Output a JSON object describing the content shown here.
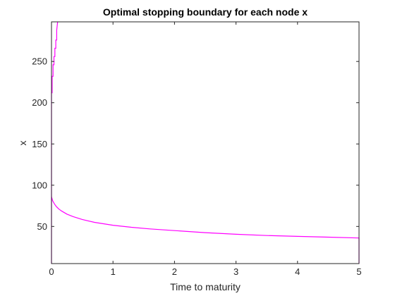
{
  "chart_data": {
    "type": "line",
    "title": "Optimal stopping boundary for each node x",
    "xlabel": "Time to maturity",
    "ylabel": "x",
    "xlim": [
      0,
      5
    ],
    "ylim": [
      5,
      298
    ],
    "xticks": [
      0,
      1,
      2,
      3,
      4,
      5
    ],
    "yticks": [
      50,
      100,
      150,
      200,
      250
    ],
    "grid": false,
    "box": true,
    "line_color": "#ff00ff",
    "series": [
      {
        "x": [
          0.0,
          0.0,
          0.02,
          0.05,
          0.08,
          0.12,
          0.17,
          0.25,
          0.35,
          0.5,
          0.7,
          1.0,
          1.3,
          1.6,
          2.0,
          2.5,
          3.0,
          3.5,
          4.0,
          4.5,
          5.0,
          5.0
        ],
        "y": [
          5,
          86,
          81,
          77,
          74,
          71,
          68.5,
          65,
          62,
          58.5,
          55,
          51.5,
          49,
          47,
          45,
          42.5,
          40.5,
          39,
          38,
          37,
          36,
          5
        ]
      },
      {
        "x": [
          0.0,
          0.0,
          0.01,
          0.01,
          0.025,
          0.025,
          0.04,
          0.04,
          0.055,
          0.055,
          0.07,
          0.07,
          0.085,
          0.085,
          0.1
        ],
        "y": [
          86,
          212,
          212,
          232,
          232,
          246,
          246,
          256,
          256,
          266,
          266,
          276,
          276,
          288,
          298
        ]
      }
    ]
  }
}
